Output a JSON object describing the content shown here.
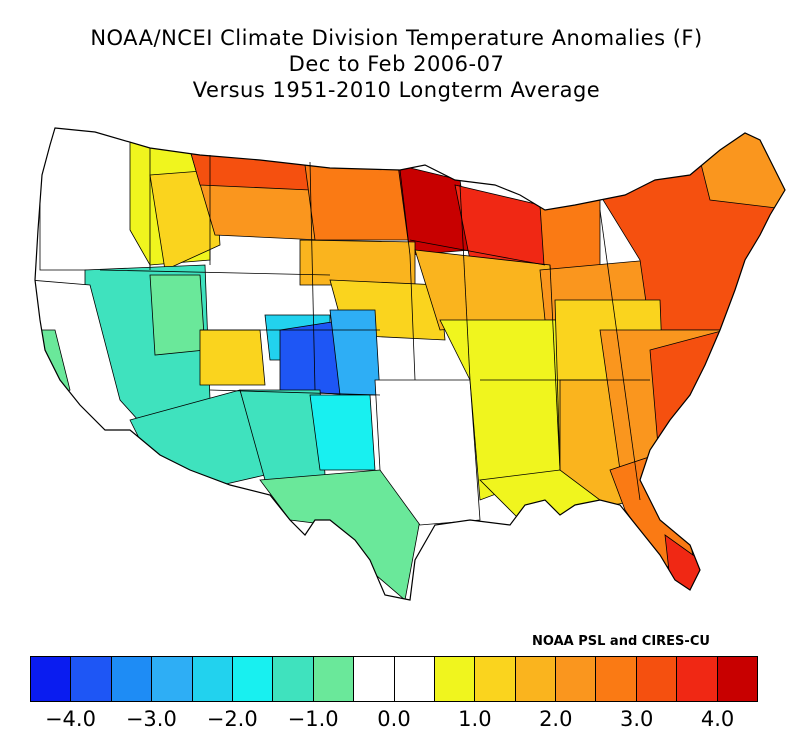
{
  "title": {
    "line1": "NOAA/NCEI Climate Division Temperature Anomalies (F)",
    "line2": "Dec to Feb 2006-07",
    "line3": "Versus 1951-2010 Longterm Average"
  },
  "credit": "NOAA PSL and CIRES-CU",
  "legend": {
    "colors": [
      "#0a1cf0",
      "#1e56f5",
      "#1e8cf5",
      "#2eaef5",
      "#22d2ee",
      "#18f0f0",
      "#3fe2be",
      "#6ae89a",
      "#ffffff",
      "#ffffff",
      "#f0f51e",
      "#fad41e",
      "#fab41e",
      "#fa961e",
      "#fa7a14",
      "#f5500f",
      "#f02814",
      "#c80000"
    ],
    "tick_labels": [
      "-4.0",
      "-3.0",
      "-2.0",
      "-1.0",
      "0.0",
      "1.0",
      "2.0",
      "3.0",
      "4.0"
    ],
    "tick_values": [
      -4,
      -3,
      -2,
      -1,
      0,
      1,
      2,
      3,
      4
    ],
    "range": [
      -4.5,
      4.5
    ]
  },
  "map_regions": [
    {
      "name": "pacific-northwest-coast",
      "anomaly": 0.0
    },
    {
      "name": "northern-rockies-west",
      "anomaly": 1.5
    },
    {
      "name": "montana-east",
      "anomaly": 3.0
    },
    {
      "name": "north-dakota",
      "anomaly": 3.0
    },
    {
      "name": "minnesota-north",
      "anomaly": 4.0
    },
    {
      "name": "wisconsin-michigan-upper",
      "anomaly": 3.5
    },
    {
      "name": "great-basin",
      "anomaly": -1.0
    },
    {
      "name": "california",
      "anomaly": 0.0
    },
    {
      "name": "colorado-northeast",
      "anomaly": -3.5
    },
    {
      "name": "colorado-west",
      "anomaly": -2.0
    },
    {
      "name": "kansas-west",
      "anomaly": -2.5
    },
    {
      "name": "arizona-new-mexico",
      "anomaly": -1.0
    },
    {
      "name": "texas-west",
      "anomaly": -1.0
    },
    {
      "name": "texas-east",
      "anomaly": 0.0
    },
    {
      "name": "central-plains",
      "anomaly": 1.0
    },
    {
      "name": "ohio-valley",
      "anomaly": 1.5
    },
    {
      "name": "southeast",
      "anomaly": 2.0
    },
    {
      "name": "carolinas-coast",
      "anomaly": 3.0
    },
    {
      "name": "florida",
      "anomaly": 3.0
    },
    {
      "name": "northeast",
      "anomaly": 3.0
    },
    {
      "name": "new-england-north",
      "anomaly": 2.5
    }
  ]
}
